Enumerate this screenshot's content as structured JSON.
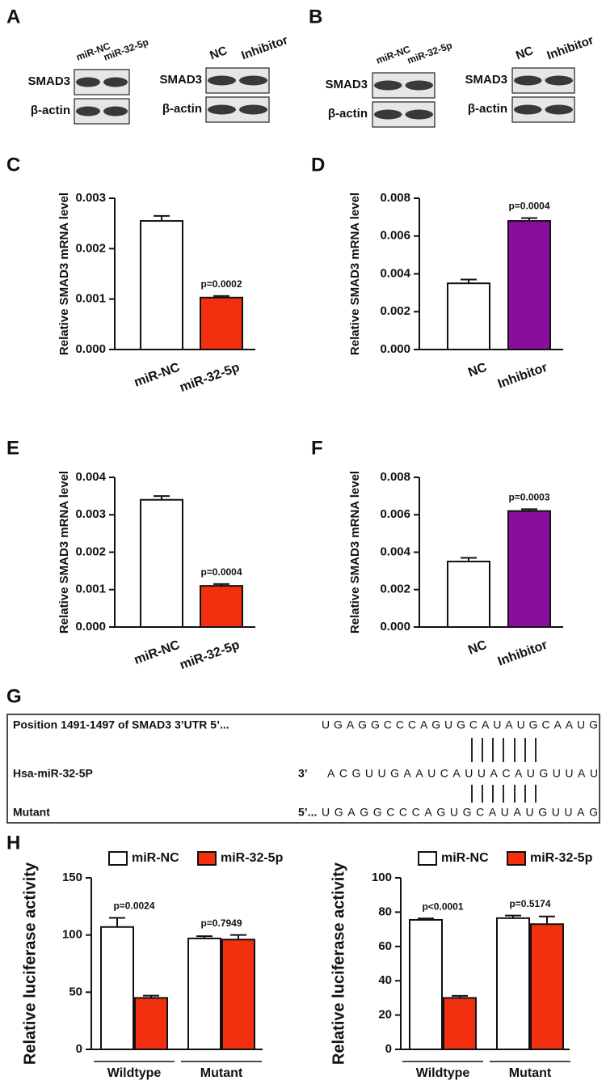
{
  "blots": [
    {
      "label": "A",
      "panels": [
        {
          "columns": [
            "miR-NC",
            "miR-32-5p"
          ],
          "rows": [
            "SMAD3",
            "β-actin"
          ]
        },
        {
          "columns": [
            "NC",
            "Inhibitor"
          ],
          "rows": [
            "SMAD3",
            "β-actin"
          ]
        }
      ]
    },
    {
      "label": "B",
      "panels": [
        {
          "columns": [
            "miR-NC",
            "miR-32-5p"
          ],
          "rows": [
            "SMAD3",
            "β-actin"
          ]
        },
        {
          "columns": [
            "NC",
            "Inhibitor"
          ],
          "rows": [
            "SMAD3",
            "β-actin"
          ]
        }
      ]
    }
  ],
  "chart_data": [
    {
      "type": "bar",
      "label": "C",
      "ylabel": "Relative SMAD3 mRNA level",
      "categories": [
        "miR-NC",
        "miR-32-5p"
      ],
      "values": [
        0.00255,
        0.00103
      ],
      "errors": [
        0.0001,
        3e-05
      ],
      "colors": [
        "#ffffff",
        "#f2300f"
      ],
      "annotations": [
        null,
        "p=0.0002"
      ],
      "ylim": [
        0,
        0.003
      ],
      "yticks": [
        {
          "value": 0,
          "label": "0.000"
        },
        0.001,
        0.002,
        0.003
      ]
    },
    {
      "type": "bar",
      "label": "D",
      "ylabel": "Relative SMAD3 mRNA level",
      "categories": [
        "NC",
        "Inhibitor"
      ],
      "values": [
        0.0035,
        0.0068
      ],
      "errors": [
        0.0002,
        0.00015
      ],
      "colors": [
        "#ffffff",
        "#8a0e9e"
      ],
      "annotations": [
        null,
        "p=0.0004"
      ],
      "ylim": [
        0,
        0.008
      ],
      "yticks": [
        {
          "value": 0,
          "label": "0.000"
        },
        0.002,
        0.004,
        0.006,
        0.008
      ]
    },
    {
      "type": "bar",
      "label": "E",
      "ylabel": "Relative SMAD3 mRNA level",
      "categories": [
        "miR-NC",
        "miR-32-5p"
      ],
      "values": [
        0.0034,
        0.0011
      ],
      "errors": [
        0.0001,
        5e-05
      ],
      "colors": [
        "#ffffff",
        "#f2300f"
      ],
      "annotations": [
        null,
        "p=0.0004"
      ],
      "ylim": [
        0,
        0.004
      ],
      "yticks": [
        {
          "value": 0,
          "label": "0.000"
        },
        0.001,
        0.002,
        0.003,
        0.004
      ]
    },
    {
      "type": "bar",
      "label": "F",
      "ylabel": "Relative SMAD3 mRNA level",
      "categories": [
        "NC",
        "Inhibitor"
      ],
      "values": [
        0.0035,
        0.0062
      ],
      "errors": [
        0.0002,
        0.0001
      ],
      "colors": [
        "#ffffff",
        "#8a0e9e"
      ],
      "annotations": [
        null,
        "p=0.0003"
      ],
      "ylim": [
        0,
        0.008
      ],
      "yticks": [
        {
          "value": 0,
          "label": "0.000"
        },
        0.002,
        0.004,
        0.006,
        0.008
      ]
    },
    {
      "type": "grouped_bar",
      "label": "H",
      "ylabel": "Relative luciferase activity",
      "categories": [
        "Wildtype",
        "Mutant"
      ],
      "annotations": [
        "p=0.0024",
        "p=0.7949"
      ],
      "series": [
        {
          "name": "miR-NC",
          "color": "#ffffff",
          "values": [
            107,
            97
          ],
          "errors": [
            8,
            2
          ]
        },
        {
          "name": "miR-32-5p",
          "color": "#f2300f",
          "values": [
            45,
            96
          ],
          "errors": [
            2,
            4
          ]
        }
      ],
      "ylim": [
        0,
        150
      ],
      "yticks": [
        0,
        50,
        100,
        150
      ],
      "legend": "top"
    },
    {
      "type": "grouped_bar",
      "ylabel": "Relative luciferase activity",
      "categories": [
        "Wildtype",
        "Mutant"
      ],
      "annotations": [
        "p<0.0001",
        "p=0.5174"
      ],
      "series": [
        {
          "name": "miR-NC",
          "color": "#ffffff",
          "values": [
            75.5,
            76.5
          ],
          "errors": [
            0.8,
            1.5
          ]
        },
        {
          "name": "miR-32-5p",
          "color": "#f2300f",
          "values": [
            30,
            73
          ],
          "errors": [
            1.2,
            4.5
          ]
        }
      ],
      "ylim": [
        0,
        100
      ],
      "yticks": [
        0,
        20,
        40,
        60,
        80,
        100
      ],
      "legend": "top"
    }
  ],
  "alignment": {
    "label": "G",
    "rows": [
      {
        "name": "Position 1491-1497 of SMAD3 3’UTR 5’...",
        "sequence": "UGAGGCCCAGUGCAUAUGCAAUG"
      },
      {
        "name": "Hsa-miR-32-5P",
        "end": "3’",
        "sequence": "ACGUUGAAUCAUUACAUGUUAU"
      },
      {
        "name": "Mutant",
        "end": "5’...",
        "sequence": "UGAGGCCCAGUGCAUAUGUUAG"
      }
    ]
  }
}
